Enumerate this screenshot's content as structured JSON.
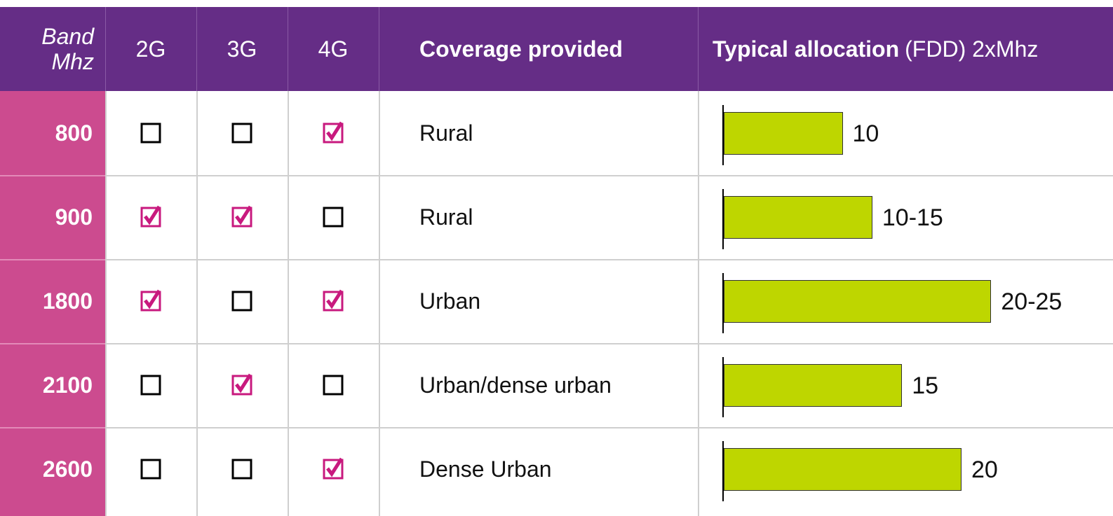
{
  "table": {
    "header": {
      "band": [
        "Band",
        "Mhz"
      ],
      "technologies": [
        "2G",
        "3G",
        "4G"
      ],
      "coverage": "Coverage provided",
      "allocation_bold": "Typical allocation",
      "allocation_rest": "(FDD) 2xMhz"
    },
    "rows": [
      {
        "band": "800",
        "support": [
          false,
          false,
          true
        ],
        "coverage": "Rural",
        "allocation": {
          "value": 10,
          "label": "10"
        }
      },
      {
        "band": "900",
        "support": [
          true,
          true,
          false
        ],
        "coverage": "Rural",
        "allocation": {
          "value": 12.5,
          "label": "10-15"
        }
      },
      {
        "band": "1800",
        "support": [
          true,
          false,
          true
        ],
        "coverage": "Urban",
        "allocation": {
          "value": 22.5,
          "label": "20-25"
        }
      },
      {
        "band": "2100",
        "support": [
          false,
          true,
          false
        ],
        "coverage": "Urban/dense urban",
        "allocation": {
          "value": 15,
          "label": "15"
        }
      },
      {
        "band": "2600",
        "support": [
          false,
          false,
          true
        ],
        "coverage": "Dense Urban",
        "allocation": {
          "value": 20,
          "label": "20"
        }
      }
    ],
    "check_color": "#c8197e",
    "bar_color": "#bed600",
    "header_color": "#652d86",
    "band_color": "#cc4b8f"
  }
}
